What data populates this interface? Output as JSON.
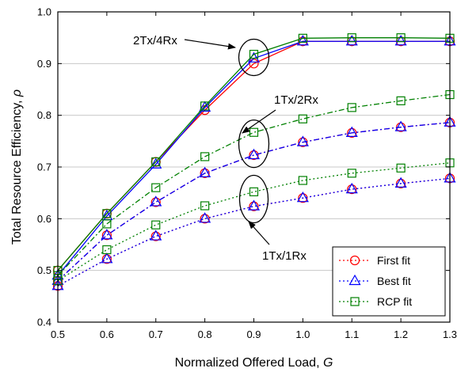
{
  "chart_data": {
    "type": "line",
    "xlabel_text": "Normalized Offered Load, ",
    "xlabel_var": "G",
    "ylabel_text": "Total Resource Efficiency, ",
    "ylabel_var": "ρ",
    "xlim": [
      0.5,
      1.3
    ],
    "ylim": [
      0.4,
      1.0
    ],
    "x_ticks": [
      "0.5",
      "0.6",
      "0.7",
      "0.8",
      "0.9",
      "1.0",
      "1.1",
      "1.2",
      "1.3"
    ],
    "y_ticks": [
      "0.4",
      "0.5",
      "0.6",
      "0.7",
      "0.8",
      "0.9",
      "1.0"
    ],
    "grid": "horizontal",
    "legend_position": "bottom-right",
    "legend": [
      {
        "label": "First fit",
        "color": "#ff0000",
        "marker": "circle",
        "dash": "dotted"
      },
      {
        "label": "Best fit",
        "color": "#0000ff",
        "marker": "triangle",
        "dash": "dotted"
      },
      {
        "label": "RCP fit",
        "color": "#008000",
        "marker": "square",
        "dash": "dotted"
      }
    ],
    "x": [
      0.5,
      0.6,
      0.7,
      0.8,
      0.9,
      1.0,
      1.1,
      1.2,
      1.3
    ],
    "series": [
      {
        "config": "2Tx/4Rx",
        "fit": "First fit",
        "color": "#ff0000",
        "marker": "circle",
        "dash": "solid",
        "values": [
          0.5,
          0.61,
          0.71,
          0.81,
          0.9,
          0.943,
          0.943,
          0.943,
          0.943
        ]
      },
      {
        "config": "2Tx/4Rx",
        "fit": "Best fit",
        "color": "#0000ff",
        "marker": "triangle",
        "dash": "solid",
        "values": [
          0.49,
          0.605,
          0.705,
          0.815,
          0.91,
          0.943,
          0.943,
          0.943,
          0.943
        ]
      },
      {
        "config": "2Tx/4Rx",
        "fit": "RCP fit",
        "color": "#008000",
        "marker": "square",
        "dash": "solid",
        "values": [
          0.5,
          0.61,
          0.71,
          0.818,
          0.918,
          0.949,
          0.95,
          0.95,
          0.949
        ]
      },
      {
        "config": "1Tx/2Rx",
        "fit": "First fit",
        "color": "#ff0000",
        "marker": "circle",
        "dash": "dashdot",
        "values": [
          0.48,
          0.568,
          0.632,
          0.688,
          0.723,
          0.748,
          0.766,
          0.777,
          0.786
        ]
      },
      {
        "config": "1Tx/2Rx",
        "fit": "Best fit",
        "color": "#0000ff",
        "marker": "triangle",
        "dash": "dashdot",
        "values": [
          0.48,
          0.568,
          0.632,
          0.688,
          0.723,
          0.748,
          0.766,
          0.777,
          0.786
        ]
      },
      {
        "config": "1Tx/2Rx",
        "fit": "RCP fit",
        "color": "#008000",
        "marker": "square",
        "dash": "dashdot",
        "values": [
          0.49,
          0.59,
          0.66,
          0.72,
          0.767,
          0.793,
          0.815,
          0.828,
          0.84
        ]
      },
      {
        "config": "1Tx/1Rx",
        "fit": "First fit",
        "color": "#ff0000",
        "marker": "circle",
        "dash": "dotted",
        "values": [
          0.47,
          0.522,
          0.566,
          0.6,
          0.624,
          0.64,
          0.657,
          0.668,
          0.678
        ]
      },
      {
        "config": "1Tx/1Rx",
        "fit": "Best fit",
        "color": "#0000ff",
        "marker": "triangle",
        "dash": "dotted",
        "values": [
          0.47,
          0.522,
          0.566,
          0.6,
          0.624,
          0.64,
          0.657,
          0.668,
          0.678
        ]
      },
      {
        "config": "1Tx/1Rx",
        "fit": "RCP fit",
        "color": "#008000",
        "marker": "square",
        "dash": "dotted",
        "values": [
          0.48,
          0.54,
          0.588,
          0.625,
          0.652,
          0.674,
          0.688,
          0.698,
          0.708
        ]
      }
    ],
    "annotations": [
      {
        "text": "2Tx/4Rx",
        "x": 0.9,
        "y": 0.912
      },
      {
        "text": "1Tx/2Rx",
        "x": 0.9,
        "y": 0.745
      },
      {
        "text": "1Tx/1Rx",
        "x": 0.9,
        "y": 0.638
      }
    ]
  }
}
